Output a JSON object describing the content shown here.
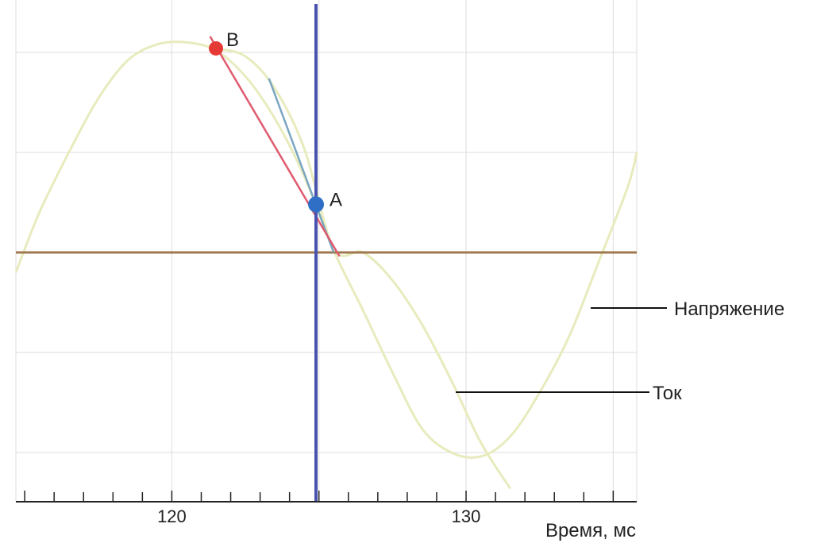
{
  "chart_data": {
    "type": "line",
    "xlabel": "Время, мс",
    "x_ticks": [
      120,
      130
    ],
    "xlim": [
      114.7,
      135.8
    ],
    "ylim": [
      -1.25,
      1.25
    ],
    "grid": true,
    "colors": {
      "grid": "#dddddd",
      "curves": "#e8ebbd",
      "zero_line": "#a07850",
      "marker_line": "#4a52b0",
      "tangent_red": "#e05a6e",
      "tangent_blue": "#7aa6c0",
      "point_a": "#2f6fc6",
      "point_b": "#e53935",
      "axis": "#222222",
      "leader": "#111111"
    },
    "series": [
      {
        "name": "Напряжение",
        "x": [
          114.7,
          115.5,
          116.5,
          117.5,
          118.5,
          119.5,
          120.5,
          121.5,
          122.5,
          123.5,
          124.5,
          125.5,
          126.5,
          127.5,
          128.5,
          129.5,
          130.5,
          131.5,
          132.5,
          133.5,
          134.5,
          135.5,
          135.8
        ],
        "values": [
          -0.1,
          0.2,
          0.5,
          0.77,
          0.96,
          1.04,
          1.05,
          1.01,
          0.88,
          0.67,
          0.38,
          0.01,
          -0.29,
          -0.6,
          -0.88,
          -1.0,
          -1.02,
          -0.92,
          -0.7,
          -0.42,
          -0.05,
          0.33,
          0.5
        ]
      },
      {
        "name": "Ток",
        "x": [
          121.5,
          122.5,
          123.5,
          124.5,
          125.5,
          126.5,
          127.5,
          128.5,
          129.5,
          130.5,
          131.5
        ],
        "values": [
          1.02,
          0.98,
          0.82,
          0.52,
          0.02,
          0.0,
          -0.14,
          -0.36,
          -0.64,
          -0.95,
          -1.18
        ]
      }
    ],
    "points": [
      {
        "label": "A",
        "x": 124.9,
        "y": 0.24
      },
      {
        "label": "B",
        "x": 121.5,
        "y": 1.02
      }
    ],
    "vertical_marker_x": 124.9
  }
}
